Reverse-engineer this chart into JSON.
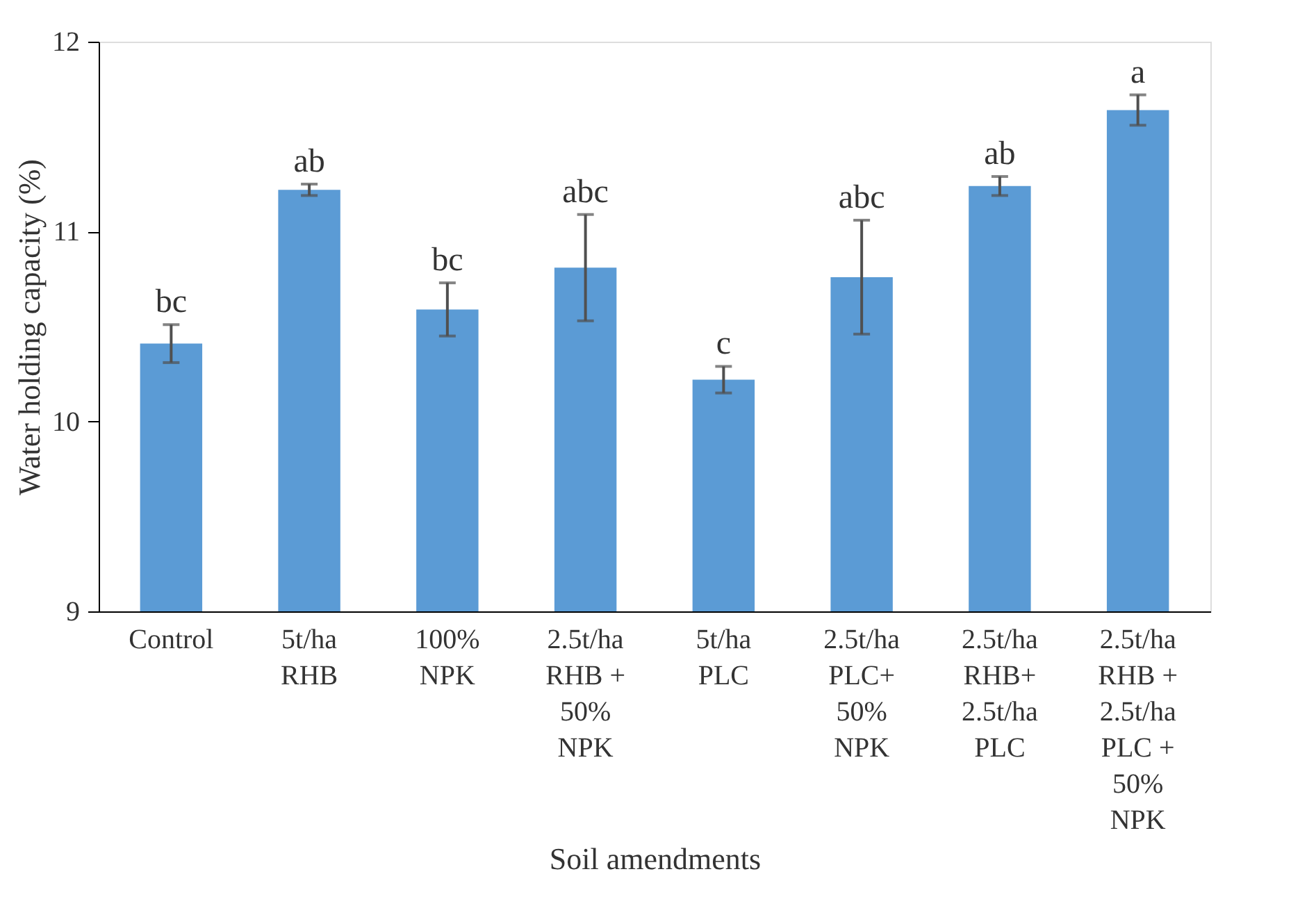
{
  "chart_data": {
    "type": "bar",
    "xlabel": "Soil amendments",
    "ylabel": "Water holding capacity (%)",
    "categories": [
      "Control",
      "5t/ha\nRHB",
      "100%\nNPK",
      "2.5t/ha\nRHB +\n50%\nNPK",
      "5t/ha\nPLC",
      "2.5t/ha\nPLC+\n50%\nNPK",
      "2.5t/ha\nRHB+\n2.5t/ha\nPLC",
      "2.5t/ha\nRHB +\n2.5t/ha\nPLC +\n50%\nNPK"
    ],
    "series": [
      {
        "color": "#5b9bd5",
        "values": [
          10.41,
          11.22,
          10.59,
          10.81,
          10.22,
          10.76,
          11.24,
          11.64
        ],
        "errors": [
          0.1,
          0.03,
          0.14,
          0.28,
          0.07,
          0.3,
          0.05,
          0.08
        ]
      }
    ],
    "ylim": [
      9,
      12
    ],
    "yticks": [
      9,
      10,
      11,
      12
    ],
    "grid": false,
    "legend": false,
    "annotations": [
      {
        "text": "bc",
        "x": "Control",
        "y": 10.51
      },
      {
        "text": "ab",
        "x": "5t/ha\nRHB",
        "y": 11.25
      },
      {
        "text": "bc",
        "x": "100%\nNPK",
        "y": 10.73
      },
      {
        "text": "abc",
        "x": "2.5t/ha\nRHB +\n50%\nNPK",
        "y": 11.09
      },
      {
        "text": "c",
        "x": "5t/ha\nPLC",
        "y": 10.29
      },
      {
        "text": "abc",
        "x": "2.5t/ha\nPLC+\n50%\nNPK",
        "y": 11.06
      },
      {
        "text": "ab",
        "x": "2.5t/ha\nRHB+\n2.5t/ha\nPLC",
        "y": 11.29
      },
      {
        "text": "a",
        "x": "2.5t/ha\nRHB +\n2.5t/ha\nPLC +\n50%\nNPK",
        "y": 11.72
      }
    ]
  }
}
